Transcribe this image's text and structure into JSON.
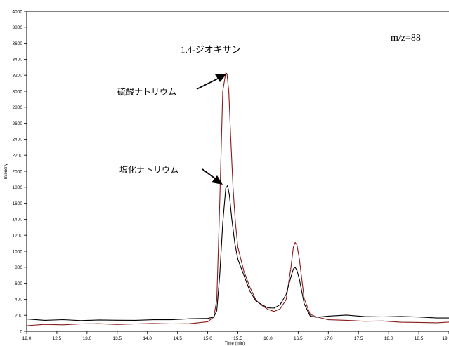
{
  "chart_data": {
    "type": "line",
    "title": "",
    "xlabel": "Time (min)",
    "ylabel": "Intensity",
    "xlim": [
      12.0,
      19.0
    ],
    "ylim": [
      0,
      4000
    ],
    "x_ticks": [
      "12.0",
      "12.5",
      "13.0",
      "13.5",
      "14.0",
      "14.5",
      "15.0",
      "15.5",
      "16.0",
      "16.5",
      "17.0",
      "17.5",
      "18.0",
      "18.5",
      "19"
    ],
    "y_ticks": [
      "0",
      "200",
      "400",
      "600",
      "800",
      "1000",
      "1200",
      "1400",
      "1600",
      "1800",
      "2000",
      "2200",
      "2400",
      "2600",
      "2800",
      "3000",
      "3200",
      "3400",
      "3600",
      "3800",
      "4000"
    ],
    "grid": false,
    "annotations": {
      "mz": "m/z=88",
      "compound": "1,4-ジオキサン",
      "sulfate": "硫酸ナトリウム",
      "chloride": "塩化ナトリウム"
    },
    "colors": {
      "sulfate": "#8b1a1a",
      "chloride": "#000000"
    },
    "series": [
      {
        "key": "sulfate",
        "x": [
          12.0,
          12.3,
          12.6,
          12.9,
          13.2,
          13.5,
          13.8,
          14.1,
          14.4,
          14.7,
          15.0,
          15.1,
          15.15,
          15.2,
          15.25,
          15.3,
          15.32,
          15.35,
          15.38,
          15.42,
          15.46,
          15.5,
          15.6,
          15.7,
          15.8,
          15.9,
          16.0,
          16.1,
          16.2,
          16.3,
          16.38,
          16.42,
          16.45,
          16.48,
          16.52,
          16.6,
          16.7,
          16.8,
          17.0,
          17.3,
          17.6,
          17.9,
          18.2,
          18.5,
          18.8,
          19.0
        ],
        "y": [
          70,
          75,
          80,
          85,
          90,
          80,
          85,
          95,
          100,
          100,
          120,
          180,
          400,
          1600,
          3000,
          3230,
          3220,
          3000,
          2450,
          1800,
          1350,
          1050,
          750,
          550,
          400,
          330,
          280,
          260,
          290,
          400,
          800,
          1050,
          1110,
          1080,
          900,
          400,
          200,
          170,
          150,
          140,
          130,
          130,
          120,
          120,
          110,
          105
        ]
      },
      {
        "key": "chloride",
        "x": [
          12.0,
          12.3,
          12.6,
          12.9,
          13.2,
          13.5,
          13.8,
          14.1,
          14.4,
          14.7,
          15.0,
          15.1,
          15.15,
          15.2,
          15.25,
          15.3,
          15.33,
          15.36,
          15.4,
          15.45,
          15.5,
          15.6,
          15.7,
          15.8,
          15.9,
          16.0,
          16.1,
          16.2,
          16.3,
          16.38,
          16.42,
          16.45,
          16.48,
          16.52,
          16.6,
          16.7,
          16.8,
          17.0,
          17.3,
          17.6,
          17.9,
          18.2,
          18.5,
          18.8,
          19.0
        ],
        "y": [
          150,
          140,
          150,
          140,
          150,
          140,
          140,
          150,
          150,
          150,
          160,
          170,
          250,
          700,
          1350,
          1790,
          1820,
          1700,
          1400,
          1100,
          900,
          700,
          500,
          370,
          320,
          290,
          280,
          330,
          450,
          680,
          780,
          800,
          760,
          650,
          350,
          200,
          180,
          190,
          200,
          180,
          170,
          175,
          170,
          165,
          160
        ]
      }
    ]
  }
}
